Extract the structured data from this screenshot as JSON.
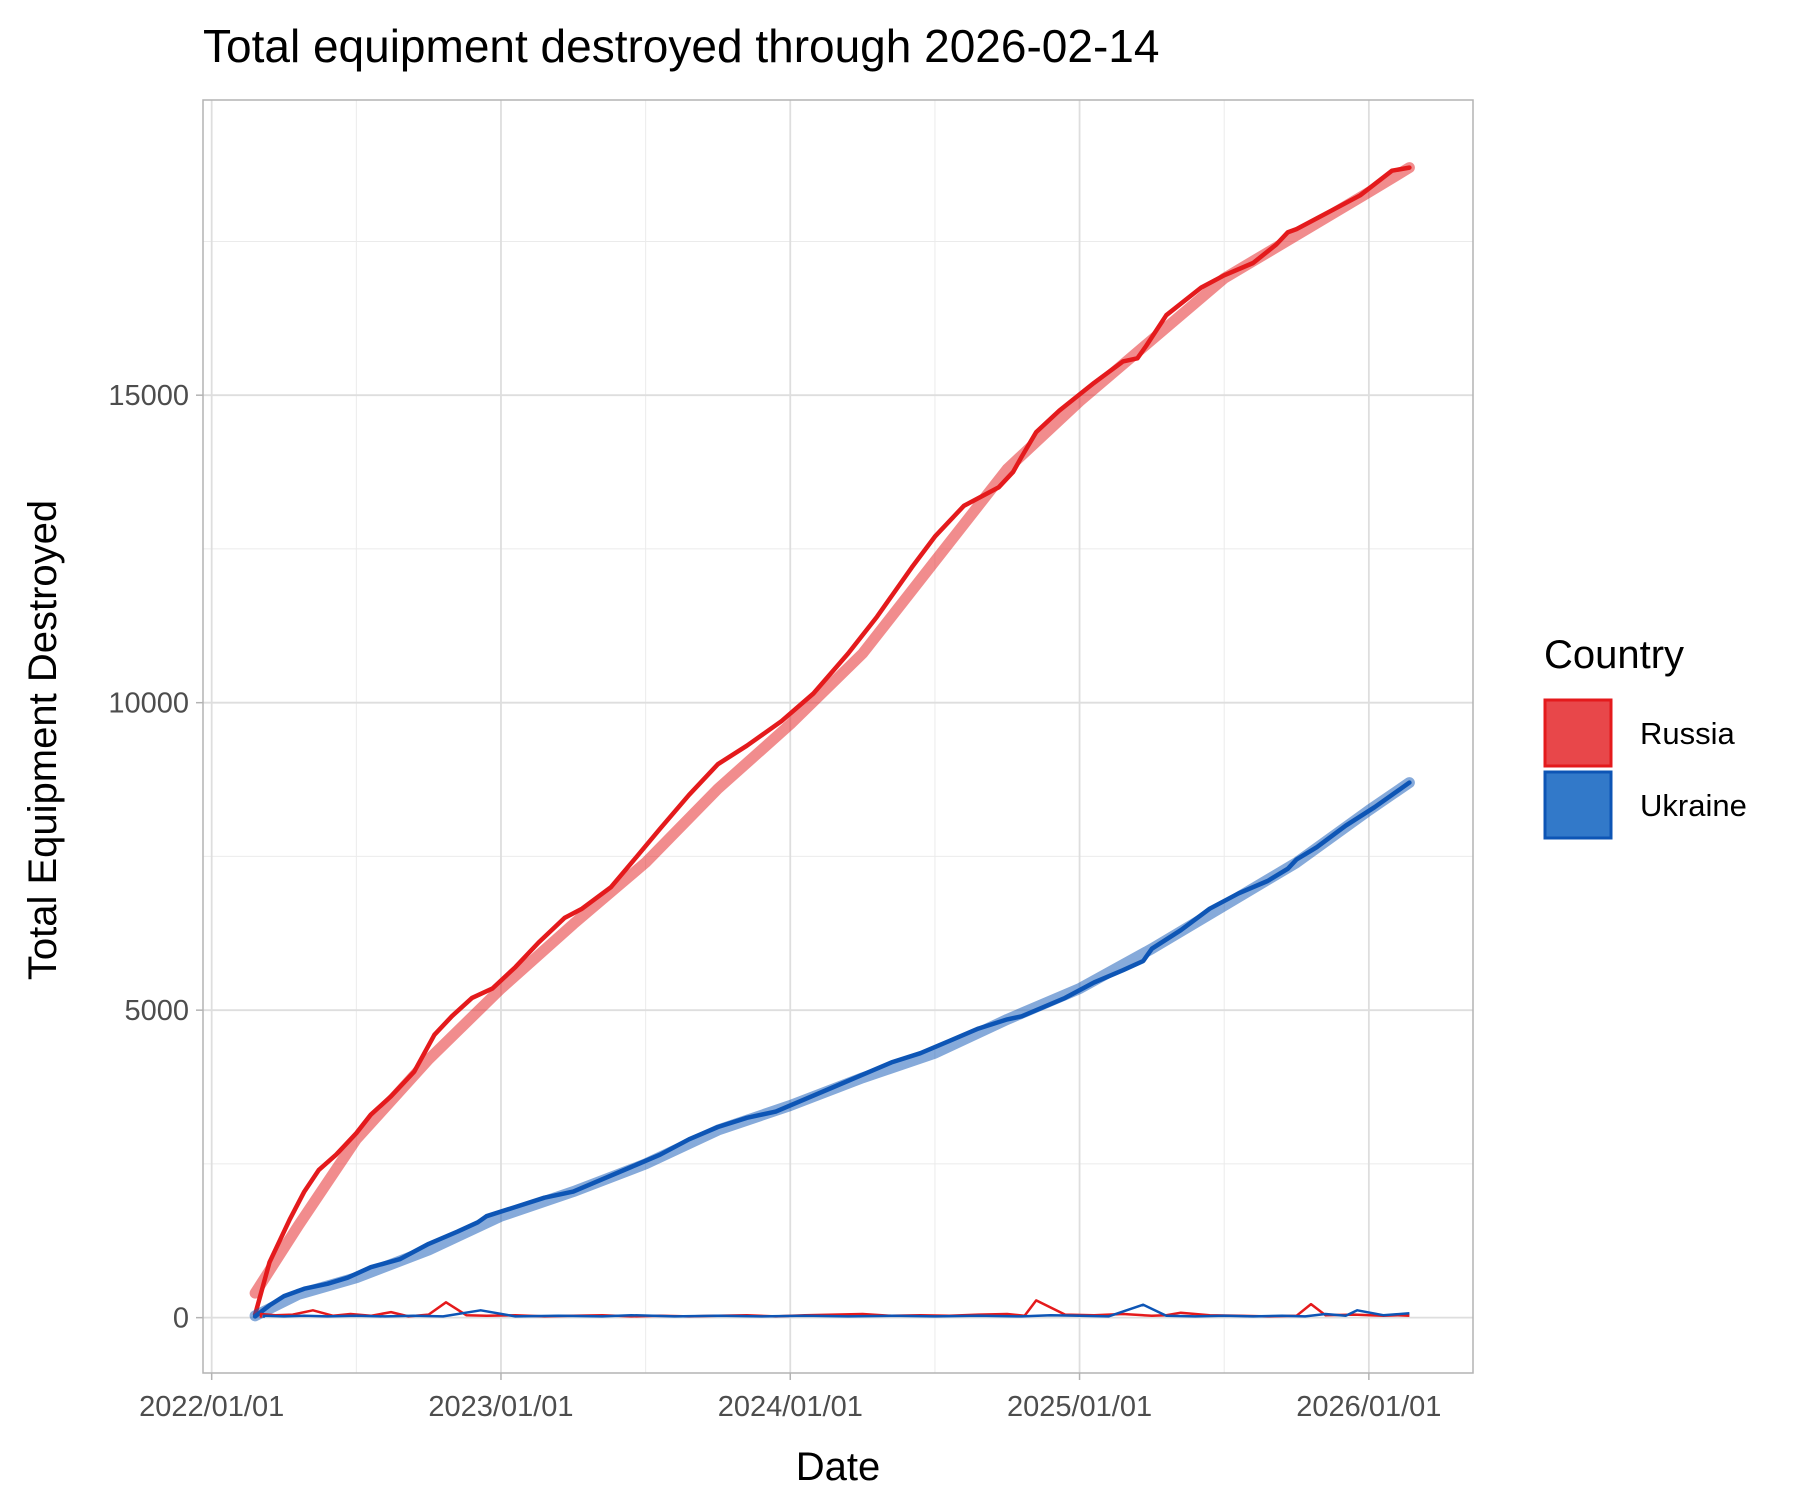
{
  "chart_data": {
    "type": "line",
    "title": "Total equipment destroyed through 2026-02-14",
    "xlabel": "Date",
    "ylabel": "Total Equipment Destroyed",
    "xlim": [
      2021.97,
      2026.36
    ],
    "ylim": [
      -900,
      19800
    ],
    "x_ticks": [
      {
        "value": 2022.0,
        "label": "2022/01/01"
      },
      {
        "value": 2023.0,
        "label": "2023/01/01"
      },
      {
        "value": 2024.0,
        "label": "2024/01/01"
      },
      {
        "value": 2025.0,
        "label": "2025/01/01"
      },
      {
        "value": 2026.0,
        "label": "2026/01/01"
      }
    ],
    "y_ticks": [
      {
        "value": 0,
        "label": "0"
      },
      {
        "value": 5000,
        "label": "5000"
      },
      {
        "value": 10000,
        "label": "10000"
      },
      {
        "value": 15000,
        "label": "15000"
      }
    ],
    "x_minor": [
      2022.5,
      2023.5,
      2024.5,
      2025.5
    ],
    "y_minor": [
      2500,
      7500,
      12500,
      17500
    ],
    "grid": true,
    "legend": {
      "title": "Country",
      "position": "right"
    },
    "series": [
      {
        "name": "Russia",
        "color": "#e41a1c",
        "fill": "#e8474a",
        "cumulative": {
          "x": [
            2022.15,
            2022.2,
            2022.27,
            2022.32,
            2022.37,
            2022.43,
            2022.5,
            2022.55,
            2022.62,
            2022.7,
            2022.77,
            2022.83,
            2022.9,
            2022.97,
            2023.05,
            2023.13,
            2023.22,
            2023.28,
            2023.38,
            2023.47,
            2023.55,
            2023.65,
            2023.75,
            2023.85,
            2023.97,
            2024.08,
            2024.2,
            2024.3,
            2024.42,
            2024.5,
            2024.6,
            2024.72,
            2024.77,
            2024.8,
            2024.85,
            2024.93,
            2025.05,
            2025.15,
            2025.2,
            2025.23,
            2025.3,
            2025.42,
            2025.5,
            2025.6,
            2025.68,
            2025.72,
            2025.75,
            2025.85,
            2025.97,
            2026.08,
            2026.14
          ],
          "y": [
            50,
            900,
            1600,
            2050,
            2400,
            2650,
            3000,
            3300,
            3600,
            4000,
            4600,
            4900,
            5200,
            5350,
            5700,
            6100,
            6500,
            6650,
            7000,
            7500,
            7950,
            8500,
            9000,
            9300,
            9700,
            10150,
            10800,
            11400,
            12200,
            12700,
            13200,
            13500,
            13750,
            14000,
            14400,
            14750,
            15200,
            15550,
            15600,
            15800,
            16300,
            16750,
            16950,
            17150,
            17450,
            17650,
            17700,
            17950,
            18250,
            18650,
            18700
          ]
        },
        "trend": {
          "x": [
            2022.15,
            2022.3,
            2022.5,
            2022.75,
            2023.0,
            2023.25,
            2023.5,
            2023.75,
            2024.0,
            2024.25,
            2024.5,
            2024.75,
            2025.0,
            2025.25,
            2025.5,
            2025.75,
            2026.0,
            2026.14
          ],
          "y": [
            400,
            1500,
            2900,
            4200,
            5350,
            6400,
            7400,
            8600,
            9650,
            10800,
            12300,
            13800,
            14900,
            15900,
            16900,
            17600,
            18300,
            18700
          ]
        },
        "daily": {
          "x": [
            2022.17,
            2022.22,
            2022.28,
            2022.35,
            2022.42,
            2022.48,
            2022.55,
            2022.62,
            2022.68,
            2022.75,
            2022.81,
            2022.88,
            2022.95,
            2023.05,
            2023.15,
            2023.25,
            2023.35,
            2023.45,
            2023.55,
            2023.65,
            2023.75,
            2023.85,
            2023.95,
            2024.05,
            2024.15,
            2024.25,
            2024.35,
            2024.45,
            2024.55,
            2024.65,
            2024.75,
            2024.81,
            2024.85,
            2024.95,
            2025.05,
            2025.15,
            2025.25,
            2025.3,
            2025.35,
            2025.45,
            2025.55,
            2025.65,
            2025.75,
            2025.8,
            2025.85,
            2025.95,
            2026.05,
            2026.1,
            2026.14
          ],
          "y": [
            60,
            40,
            50,
            120,
            30,
            60,
            30,
            90,
            20,
            50,
            250,
            40,
            30,
            40,
            20,
            30,
            40,
            20,
            30,
            20,
            30,
            40,
            20,
            40,
            50,
            60,
            30,
            40,
            30,
            50,
            60,
            30,
            280,
            50,
            40,
            60,
            30,
            40,
            80,
            40,
            30,
            20,
            30,
            220,
            40,
            50,
            30,
            40,
            30
          ]
        }
      },
      {
        "name": "Ukraine",
        "color": "#0d55b5",
        "fill": "#3279c9",
        "cumulative": {
          "x": [
            2022.15,
            2022.2,
            2022.25,
            2022.32,
            2022.4,
            2022.47,
            2022.55,
            2022.65,
            2022.75,
            2022.85,
            2022.92,
            2022.95,
            2023.05,
            2023.15,
            2023.25,
            2023.35,
            2023.45,
            2023.55,
            2023.65,
            2023.75,
            2023.85,
            2023.95,
            2024.05,
            2024.15,
            2024.25,
            2024.35,
            2024.45,
            2024.55,
            2024.65,
            2024.75,
            2024.8,
            2024.85,
            2024.95,
            2025.05,
            2025.15,
            2025.22,
            2025.25,
            2025.35,
            2025.45,
            2025.55,
            2025.65,
            2025.72,
            2025.75,
            2025.82,
            2025.92,
            2026.02,
            2026.14
          ],
          "y": [
            20,
            200,
            350,
            470,
            550,
            650,
            820,
            950,
            1200,
            1400,
            1550,
            1650,
            1800,
            1950,
            2050,
            2250,
            2450,
            2650,
            2900,
            3100,
            3250,
            3350,
            3550,
            3750,
            3950,
            4150,
            4300,
            4500,
            4700,
            4850,
            4900,
            5000,
            5200,
            5450,
            5650,
            5800,
            6000,
            6300,
            6650,
            6900,
            7100,
            7300,
            7450,
            7650,
            8000,
            8300,
            8700
          ]
        },
        "trend": {
          "x": [
            2022.15,
            2022.3,
            2022.5,
            2022.75,
            2023.0,
            2023.25,
            2023.5,
            2023.75,
            2024.0,
            2024.25,
            2024.5,
            2024.75,
            2025.0,
            2025.25,
            2025.5,
            2025.75,
            2026.0,
            2026.14
          ],
          "y": [
            30,
            380,
            650,
            1100,
            1650,
            2050,
            2500,
            3050,
            3450,
            3900,
            4300,
            4850,
            5350,
            6000,
            6700,
            7400,
            8250,
            8700
          ]
        },
        "daily": {
          "x": [
            2022.18,
            2022.25,
            2022.32,
            2022.4,
            2022.5,
            2022.6,
            2022.7,
            2022.8,
            2022.93,
            2023.05,
            2023.2,
            2023.35,
            2023.45,
            2023.6,
            2023.75,
            2023.9,
            2024.05,
            2024.2,
            2024.35,
            2024.5,
            2024.65,
            2024.8,
            2024.9,
            2025.0,
            2025.1,
            2025.22,
            2025.3,
            2025.4,
            2025.5,
            2025.6,
            2025.7,
            2025.78,
            2025.85,
            2025.92,
            2025.96,
            2026.05,
            2026.14
          ],
          "y": [
            30,
            20,
            30,
            20,
            30,
            20,
            30,
            20,
            120,
            20,
            30,
            20,
            40,
            20,
            30,
            20,
            30,
            20,
            30,
            20,
            30,
            20,
            40,
            30,
            20,
            210,
            30,
            20,
            30,
            20,
            30,
            20,
            60,
            30,
            120,
            40,
            70
          ]
        }
      }
    ]
  }
}
